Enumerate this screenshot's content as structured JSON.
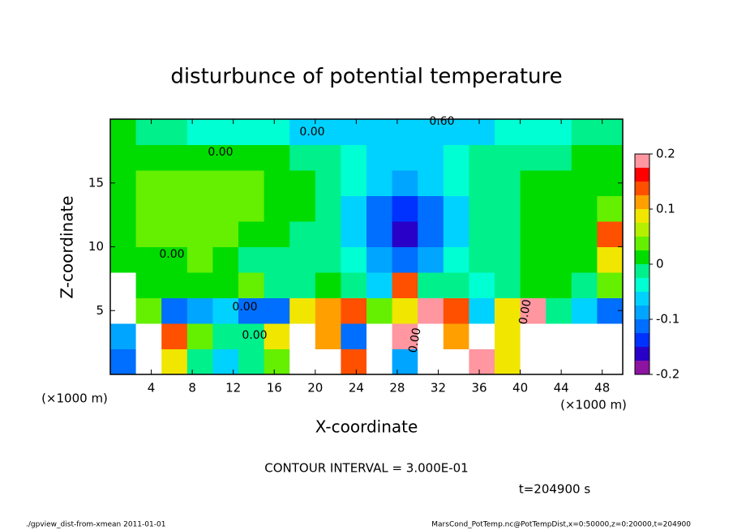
{
  "chart_data": {
    "type": "heatmap",
    "title": "disturbunce of potential temperature",
    "x_label": "X-coordinate",
    "y_label": "Z-coordinate",
    "x_unit": "(×1000 m)",
    "y_unit": "(×1000 m)",
    "xlim": [
      0,
      50
    ],
    "ylim": [
      0,
      20
    ],
    "xticks": [
      4,
      8,
      12,
      16,
      20,
      24,
      28,
      32,
      36,
      40,
      44,
      48
    ],
    "yticks": [
      5,
      10,
      15
    ],
    "z": [
      [
        -0.12,
        0.3,
        0.1,
        0.0,
        -0.05,
        -0.02,
        0.05,
        0.3,
        0.3,
        0.15,
        0.3,
        -0.08,
        0.3,
        0.3,
        0.2,
        0.1,
        0.3,
        0.3,
        0.3,
        0.3
      ],
      [
        -0.08,
        0.3,
        0.15,
        0.05,
        -0.02,
        0.0,
        0.1,
        0.3,
        0.12,
        -0.1,
        0.3,
        0.2,
        0.25,
        0.12,
        0.3,
        0.1,
        0.3,
        0.3,
        0.3,
        0.3
      ],
      [
        0.3,
        0.05,
        -0.1,
        -0.08,
        -0.05,
        -0.1,
        -0.12,
        0.08,
        0.12,
        0.15,
        0.05,
        0.1,
        0.2,
        0.15,
        -0.05,
        0.1,
        0.18,
        0.0,
        -0.05,
        -0.1
      ],
      [
        0.3,
        0.02,
        0.02,
        0.02,
        0.02,
        0.03,
        -0.02,
        0.0,
        0.02,
        0.0,
        -0.05,
        0.15,
        0.0,
        -0.02,
        -0.03,
        0.0,
        0.02,
        0.02,
        0.0,
        0.05
      ],
      [
        0.01,
        0.02,
        0.02,
        0.03,
        0.02,
        0.0,
        0.0,
        0.0,
        0.0,
        -0.03,
        -0.08,
        -0.1,
        -0.08,
        -0.03,
        0.0,
        0.0,
        0.02,
        0.02,
        0.02,
        0.1
      ],
      [
        0.02,
        0.03,
        0.04,
        0.05,
        0.04,
        0.02,
        0.01,
        0.0,
        -0.02,
        -0.05,
        -0.12,
        -0.15,
        -0.12,
        -0.05,
        -0.02,
        0.0,
        0.01,
        0.02,
        0.02,
        0.15
      ],
      [
        0.02,
        0.04,
        0.05,
        0.05,
        0.04,
        0.03,
        0.02,
        0.01,
        -0.01,
        -0.05,
        -0.1,
        -0.13,
        -0.1,
        -0.05,
        -0.02,
        0.0,
        0.01,
        0.02,
        0.02,
        0.03
      ],
      [
        0.02,
        0.03,
        0.04,
        0.04,
        0.03,
        0.03,
        0.02,
        0.01,
        0.0,
        -0.03,
        -0.07,
        -0.09,
        -0.07,
        -0.04,
        -0.01,
        0.0,
        0.01,
        0.01,
        0.02,
        0.02
      ],
      [
        0.02,
        0.02,
        0.02,
        0.02,
        0.01,
        0.01,
        0.01,
        0.0,
        -0.02,
        -0.03,
        -0.05,
        -0.06,
        -0.05,
        -0.04,
        -0.02,
        -0.01,
        0.0,
        0.0,
        0.01,
        0.02
      ],
      [
        0.02,
        0.0,
        -0.02,
        -0.03,
        -0.03,
        -0.03,
        -0.04,
        -0.05,
        -0.05,
        -0.06,
        -0.07,
        -0.07,
        -0.06,
        -0.05,
        -0.05,
        -0.04,
        -0.03,
        -0.03,
        -0.02,
        0.0
      ]
    ],
    "colorbar": {
      "levels": [
        -0.2,
        -0.175,
        -0.15,
        -0.125,
        -0.1,
        -0.075,
        -0.05,
        -0.025,
        0,
        0.025,
        0.05,
        0.075,
        0.1,
        0.125,
        0.15,
        0.175,
        0.2
      ],
      "colors": [
        "#8c14a0",
        "#2800c8",
        "#0032ff",
        "#006eff",
        "#00a5ff",
        "#00d2ff",
        "#00ffd2",
        "#00f08c",
        "#00dc00",
        "#64f000",
        "#b4f000",
        "#f0e600",
        "#ffa000",
        "#ff5000",
        "#ff0000",
        "#ff96a0"
      ],
      "ticks": [
        0.2,
        0.1,
        0,
        -0.1,
        -0.2
      ]
    },
    "contour_labels": [
      "0.60",
      "0.00",
      "0.00",
      "0.00",
      "0.00",
      "0.00",
      "0.00",
      "0.00"
    ],
    "contour_interval": "CONTOUR INTERVAL = 3.000E-01",
    "time_label": "t=204900 s",
    "footer_left": "./gpview_dist-from-xmean  2011-01-01",
    "footer_right": "MarsCond_PotTemp.nc@PotTempDist,x=0:50000,z=0:20000,t=204900"
  }
}
